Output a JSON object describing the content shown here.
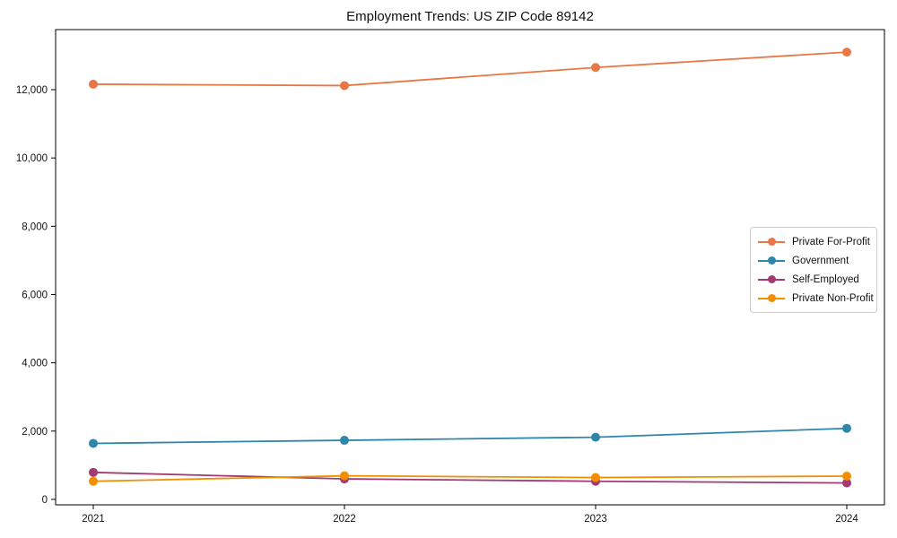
{
  "chart_data": {
    "type": "line",
    "title": "Employment Trends: US ZIP Code 89142",
    "xlabel": "",
    "ylabel": "",
    "categories": [
      2021,
      2022,
      2023,
      2024
    ],
    "series": [
      {
        "name": "Private For-Profit",
        "color": "#E87746",
        "values": [
          12160,
          12120,
          12650,
          13100
        ]
      },
      {
        "name": "Government",
        "color": "#2E86AB",
        "values": [
          1640,
          1730,
          1820,
          2080
        ]
      },
      {
        "name": "Self-Employed",
        "color": "#A23B72",
        "values": [
          790,
          600,
          530,
          480
        ]
      },
      {
        "name": "Private Non-Profit",
        "color": "#F18F01",
        "values": [
          530,
          690,
          640,
          680
        ]
      }
    ],
    "xlim": [
      2020.85,
      2024.15
    ],
    "ylim": [
      -160,
      13760
    ],
    "yticks": [
      0,
      2000,
      4000,
      6000,
      8000,
      10000,
      12000
    ],
    "ytick_labels": [
      "0",
      "2,000",
      "4,000",
      "6,000",
      "8,000",
      "10,000",
      "12,000"
    ],
    "xtick_labels": [
      "2021",
      "2022",
      "2023",
      "2024"
    ],
    "grid": false,
    "marker": "circle",
    "legend_position": "right-middle"
  }
}
